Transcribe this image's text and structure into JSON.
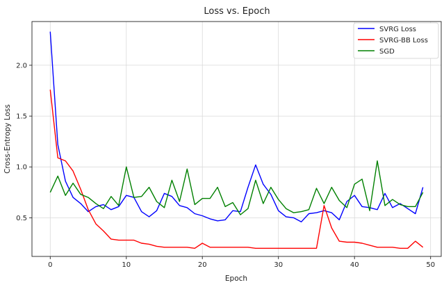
{
  "chart_data": {
    "type": "line",
    "title": "Loss vs. Epoch",
    "xlabel": "Epoch",
    "ylabel": "Cross-Entropy Loss",
    "xlim": [
      -2.4,
      51.4
    ],
    "ylim": [
      0.12,
      2.43
    ],
    "xticks": [
      0,
      10,
      20,
      30,
      40,
      50
    ],
    "yticks": [
      0.5,
      1.0,
      1.5,
      2.0
    ],
    "xtick_labels": [
      "0",
      "10",
      "20",
      "30",
      "40",
      "50"
    ],
    "ytick_labels": [
      "0.5",
      "1.0",
      "1.5",
      "2.0"
    ],
    "grid": true,
    "legend_position": "top-right",
    "x": [
      0,
      1,
      2,
      3,
      4,
      5,
      6,
      7,
      8,
      9,
      10,
      11,
      12,
      13,
      14,
      15,
      16,
      17,
      18,
      19,
      20,
      21,
      22,
      23,
      24,
      25,
      26,
      27,
      28,
      29,
      30,
      31,
      32,
      33,
      34,
      35,
      36,
      37,
      38,
      39,
      40,
      41,
      42,
      43,
      44,
      45,
      46,
      47,
      48,
      49
    ],
    "series": [
      {
        "name": "SVRG Loss",
        "color": "#0000ff",
        "values": [
          2.33,
          1.22,
          0.86,
          0.7,
          0.64,
          0.56,
          0.61,
          0.63,
          0.58,
          0.61,
          0.72,
          0.7,
          0.56,
          0.51,
          0.57,
          0.74,
          0.71,
          0.62,
          0.6,
          0.54,
          0.52,
          0.49,
          0.47,
          0.48,
          0.57,
          0.56,
          0.8,
          1.02,
          0.83,
          0.73,
          0.57,
          0.51,
          0.5,
          0.46,
          0.54,
          0.55,
          0.57,
          0.55,
          0.48,
          0.66,
          0.72,
          0.61,
          0.6,
          0.58,
          0.74,
          0.6,
          0.64,
          0.59,
          0.54,
          0.8
        ]
      },
      {
        "name": "SVRG-BB Loss",
        "color": "#ff0000",
        "values": [
          1.76,
          1.09,
          1.06,
          0.96,
          0.78,
          0.58,
          0.44,
          0.37,
          0.29,
          0.28,
          0.28,
          0.28,
          0.25,
          0.24,
          0.22,
          0.21,
          0.21,
          0.21,
          0.21,
          0.2,
          0.25,
          0.21,
          0.21,
          0.21,
          0.21,
          0.21,
          0.21,
          0.2,
          0.2,
          0.2,
          0.2,
          0.2,
          0.2,
          0.2,
          0.2,
          0.2,
          0.62,
          0.4,
          0.27,
          0.26,
          0.26,
          0.25,
          0.23,
          0.21,
          0.21,
          0.21,
          0.2,
          0.2,
          0.27,
          0.21
        ]
      },
      {
        "name": "SGD",
        "color": "#008000",
        "values": [
          0.75,
          0.91,
          0.72,
          0.84,
          0.73,
          0.7,
          0.64,
          0.59,
          0.71,
          0.62,
          1.0,
          0.7,
          0.71,
          0.8,
          0.66,
          0.6,
          0.87,
          0.66,
          0.98,
          0.63,
          0.69,
          0.69,
          0.8,
          0.61,
          0.65,
          0.53,
          0.59,
          0.87,
          0.64,
          0.8,
          0.68,
          0.59,
          0.55,
          0.56,
          0.58,
          0.79,
          0.64,
          0.8,
          0.67,
          0.6,
          0.83,
          0.88,
          0.57,
          1.06,
          0.62,
          0.68,
          0.63,
          0.61,
          0.61,
          0.75
        ]
      }
    ]
  }
}
